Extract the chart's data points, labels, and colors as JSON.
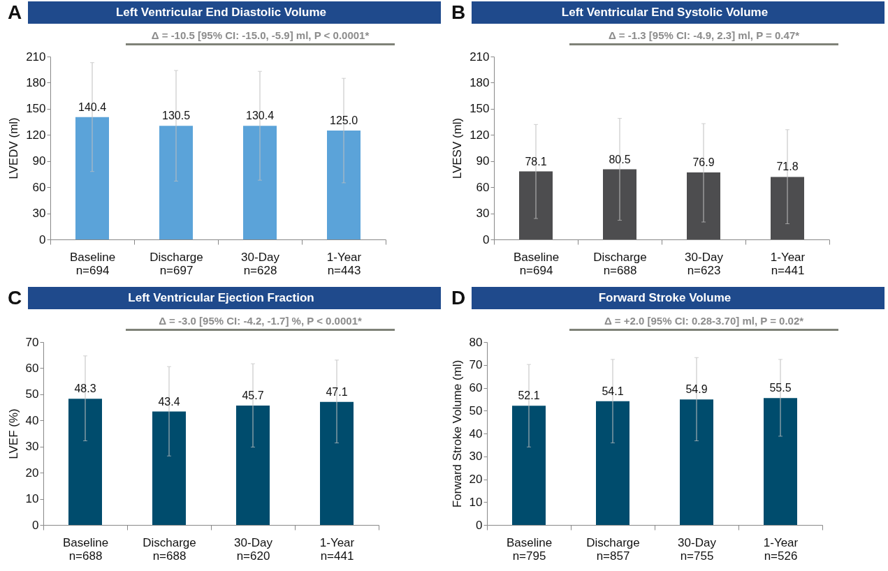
{
  "chart_data": [
    {
      "type": "bar",
      "title": "Left Ventricular End Diastolic Volume",
      "ylabel": "LVEDV (ml)",
      "categories": [
        "Baseline\nn=694",
        "Discharge\nn=697",
        "30-Day\nn=628",
        "1-Year\nn=443"
      ],
      "values": [
        140.4,
        130.5,
        130.4,
        125.0
      ],
      "value_labels": [
        "140.4",
        "130.5",
        "130.4",
        "125.0"
      ],
      "errors": [
        [
          78,
          203
        ],
        [
          67,
          194
        ],
        [
          68,
          193
        ],
        [
          65,
          185
        ]
      ],
      "color": "#5ba3d9",
      "ylim": [
        0,
        210
      ],
      "yticks": [
        0,
        30,
        60,
        90,
        120,
        150,
        180,
        210
      ],
      "data_labels": true,
      "grid": false,
      "annotations": [
        "A",
        "Δ = -10.5 [95% CI: -15.0, -5.9] ml, P < 0.0001*"
      ]
    },
    {
      "type": "bar",
      "title": "Left Ventricular End Systolic Volume",
      "ylabel": "LVESV (ml)",
      "categories": [
        "Baseline\nn=694",
        "Discharge\nn=688",
        "30-Day\nn=623",
        "1-Year\nn=441"
      ],
      "values": [
        78.1,
        80.5,
        76.9,
        71.8
      ],
      "errors": [
        [
          24,
          132
        ],
        [
          22,
          139
        ],
        [
          20,
          133
        ],
        [
          18,
          126
        ]
      ],
      "color": "#4d4d4f",
      "ylim": [
        0,
        210
      ],
      "yticks": [
        0,
        30,
        60,
        90,
        120,
        150,
        180,
        210
      ],
      "data_labels": true,
      "grid": false,
      "annotations": [
        "B",
        "Δ = -1.3 [95% CI: -4.9, 2.3] ml, P = 0.47*"
      ]
    },
    {
      "type": "bar",
      "title": "Left Ventricular Ejection Fraction",
      "ylabel": "LVEF (%)",
      "categories": [
        "Baseline\nn=688",
        "Discharge\nn=688",
        "30-Day\nn=620",
        "1-Year\nn=441"
      ],
      "values": [
        48.3,
        43.4,
        45.7,
        47.1
      ],
      "errors": [
        [
          32.2,
          64.7
        ],
        [
          26.4,
          60.6
        ],
        [
          29.8,
          61.7
        ],
        [
          31.4,
          63.1
        ]
      ],
      "color": "#004c6d",
      "ylim": [
        0,
        70
      ],
      "yticks": [
        0,
        10,
        20,
        30,
        40,
        50,
        60,
        70
      ],
      "data_labels": true,
      "grid": false,
      "annotations": [
        "C",
        "Δ = -3.0 [95% CI: -4.2, -1.7] %, P < 0.0001*"
      ]
    },
    {
      "type": "bar",
      "title": "Forward Stroke Volume",
      "ylabel": "Forward Stroke Volume (ml)",
      "categories": [
        "Baseline\nn=795",
        "Discharge\nn=857",
        "30-Day\nn=755",
        "1-Year\nn=526"
      ],
      "values": [
        52.1,
        54.1,
        54.9,
        55.5
      ],
      "errors": [
        [
          34.1,
          70.2
        ],
        [
          35.9,
          72.4
        ],
        [
          36.8,
          73.2
        ],
        [
          38.8,
          72.4
        ]
      ],
      "color": "#004c6d",
      "ylim": [
        0,
        80
      ],
      "yticks": [
        0,
        10,
        20,
        30,
        40,
        50,
        60,
        70,
        80
      ],
      "data_labels": true,
      "grid": false,
      "annotations": [
        "D",
        "Δ = +2.0 [95% CI: 0.28-3.70] ml, P = 0.02*"
      ]
    }
  ]
}
